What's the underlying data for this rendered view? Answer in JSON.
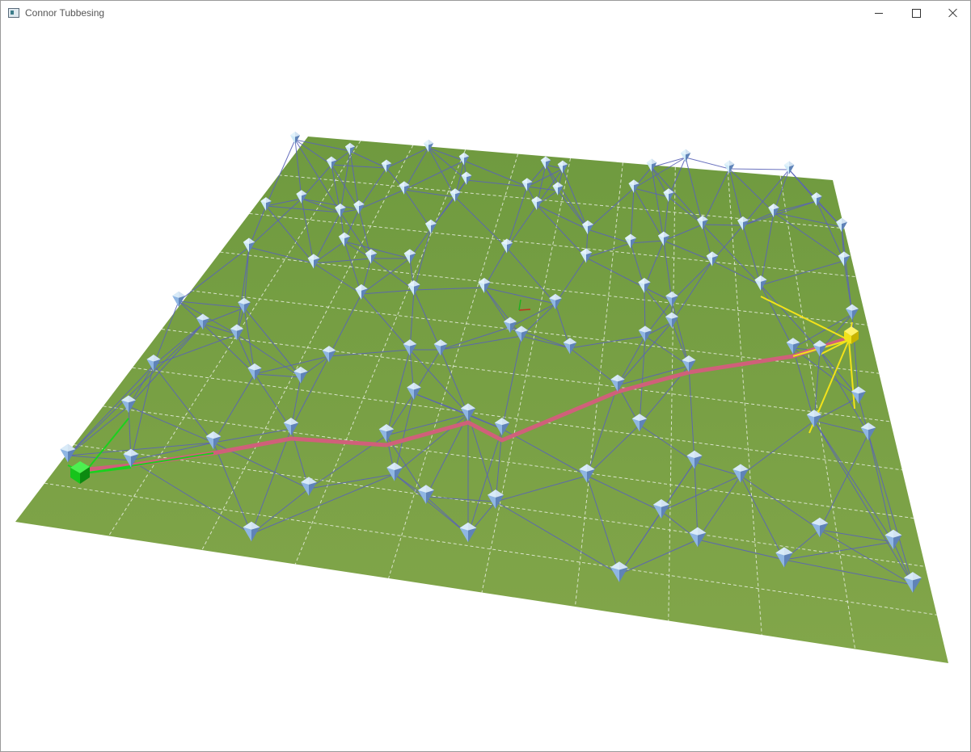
{
  "window": {
    "title": "Connor Tubbesing",
    "controls": [
      "minimize",
      "maximize",
      "close"
    ]
  },
  "scene": {
    "ground_color": "#7ba047",
    "grid_color": "#e8eee0",
    "edge_color": "#5a63b8",
    "path_color": "#d0607a",
    "start_color": "#19d21e",
    "goal_color": "#f2e21a",
    "node_color": "#8fb6e3",
    "node_far_color": "#cfeaf7",
    "start_node_label": "start",
    "goal_node_label": "goal"
  }
}
